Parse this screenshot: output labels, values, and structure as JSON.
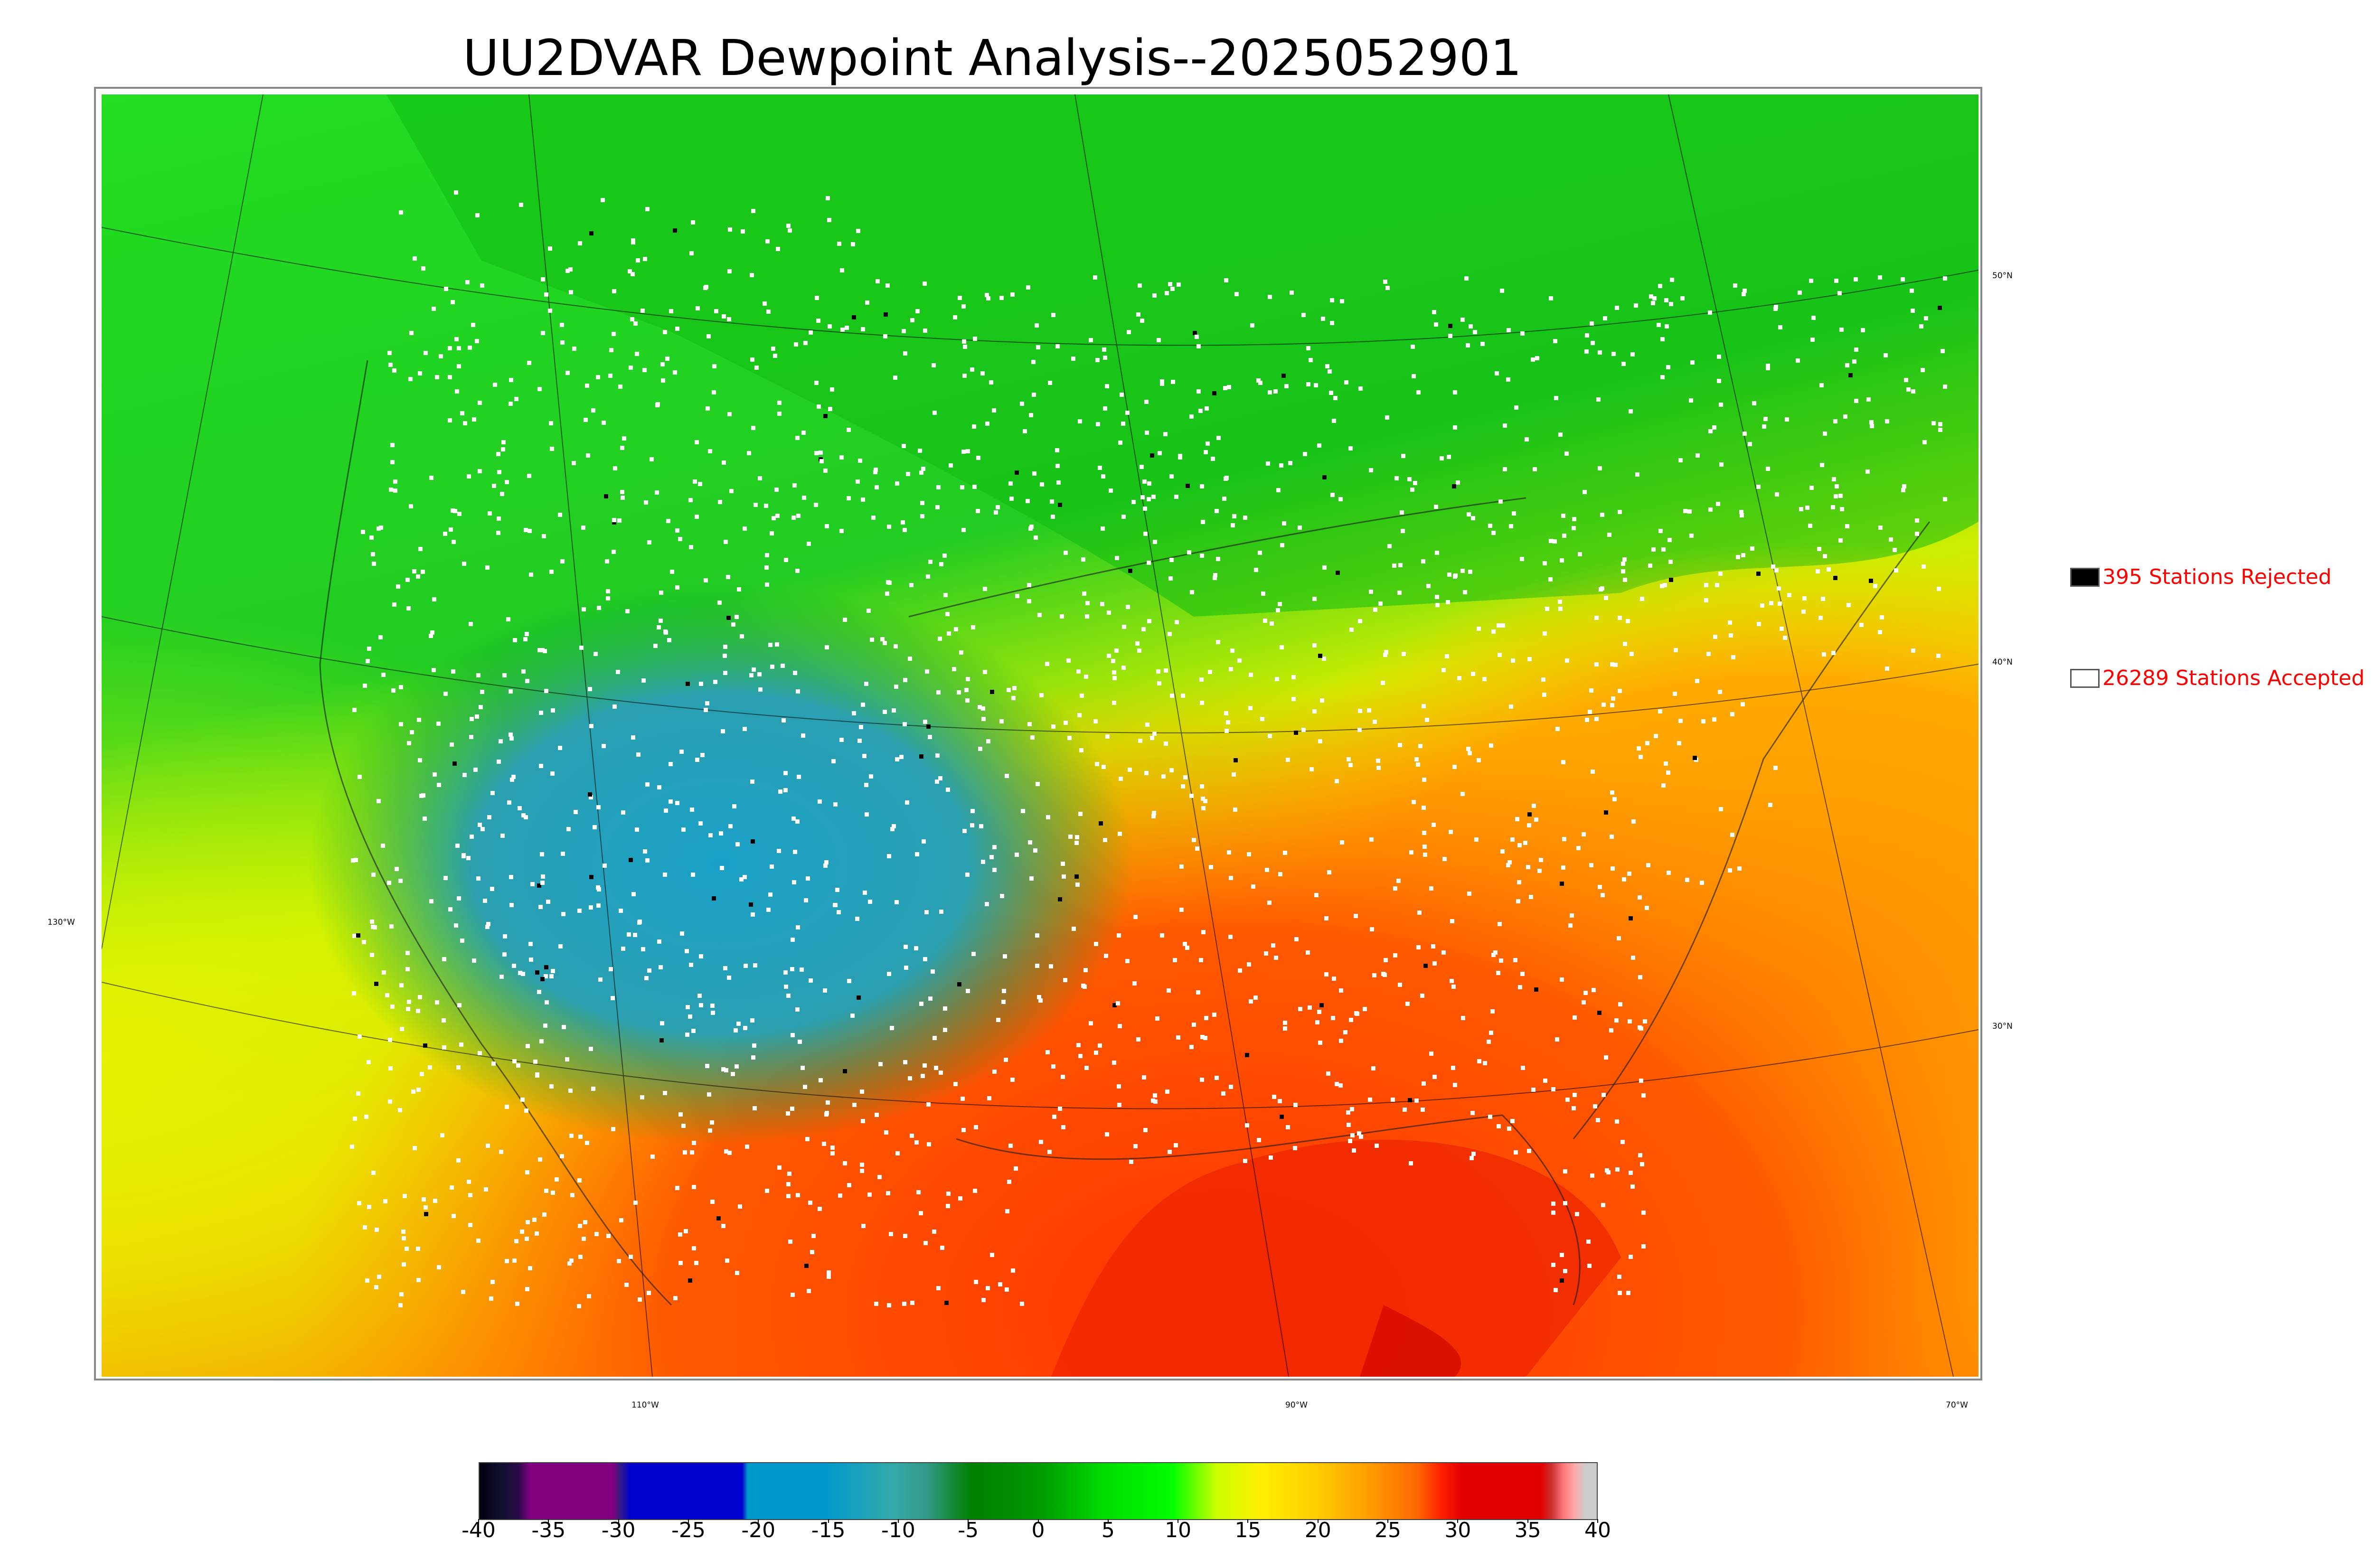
{
  "title": "UU2DVAR Dewpoint Analysis--2025052901",
  "map": {
    "lat_labels": [
      "50°N",
      "40°N",
      "30°N"
    ],
    "lon_labels": [
      "110°W",
      "90°W",
      "70°W"
    ],
    "left_label": "130°W"
  },
  "legend": {
    "rejected": {
      "label": "395 Stations Rejected",
      "color": "#000000"
    },
    "accepted": {
      "label": "26289 Stations Accepted",
      "color": "#ffffff"
    }
  },
  "colorbar": {
    "ticks": [
      "-40",
      "-35",
      "-30",
      "-25",
      "-20",
      "-15",
      "-10",
      "-5",
      "0",
      "5",
      "10",
      "15",
      "20",
      "25",
      "30",
      "35",
      "40"
    ],
    "range": [
      -40,
      40
    ],
    "colors": {
      "black": "#000010",
      "purple": "#800080",
      "blue": "#0000cd",
      "cyan": "#0099cc",
      "teal": "#339999",
      "darkgreen": "#008000",
      "green": "#00ee00",
      "yellowgreen": "#ccff00",
      "yellow": "#ffdd00",
      "orange": "#ff8c00",
      "red": "#e00000",
      "gray": "#cccccc"
    }
  }
}
